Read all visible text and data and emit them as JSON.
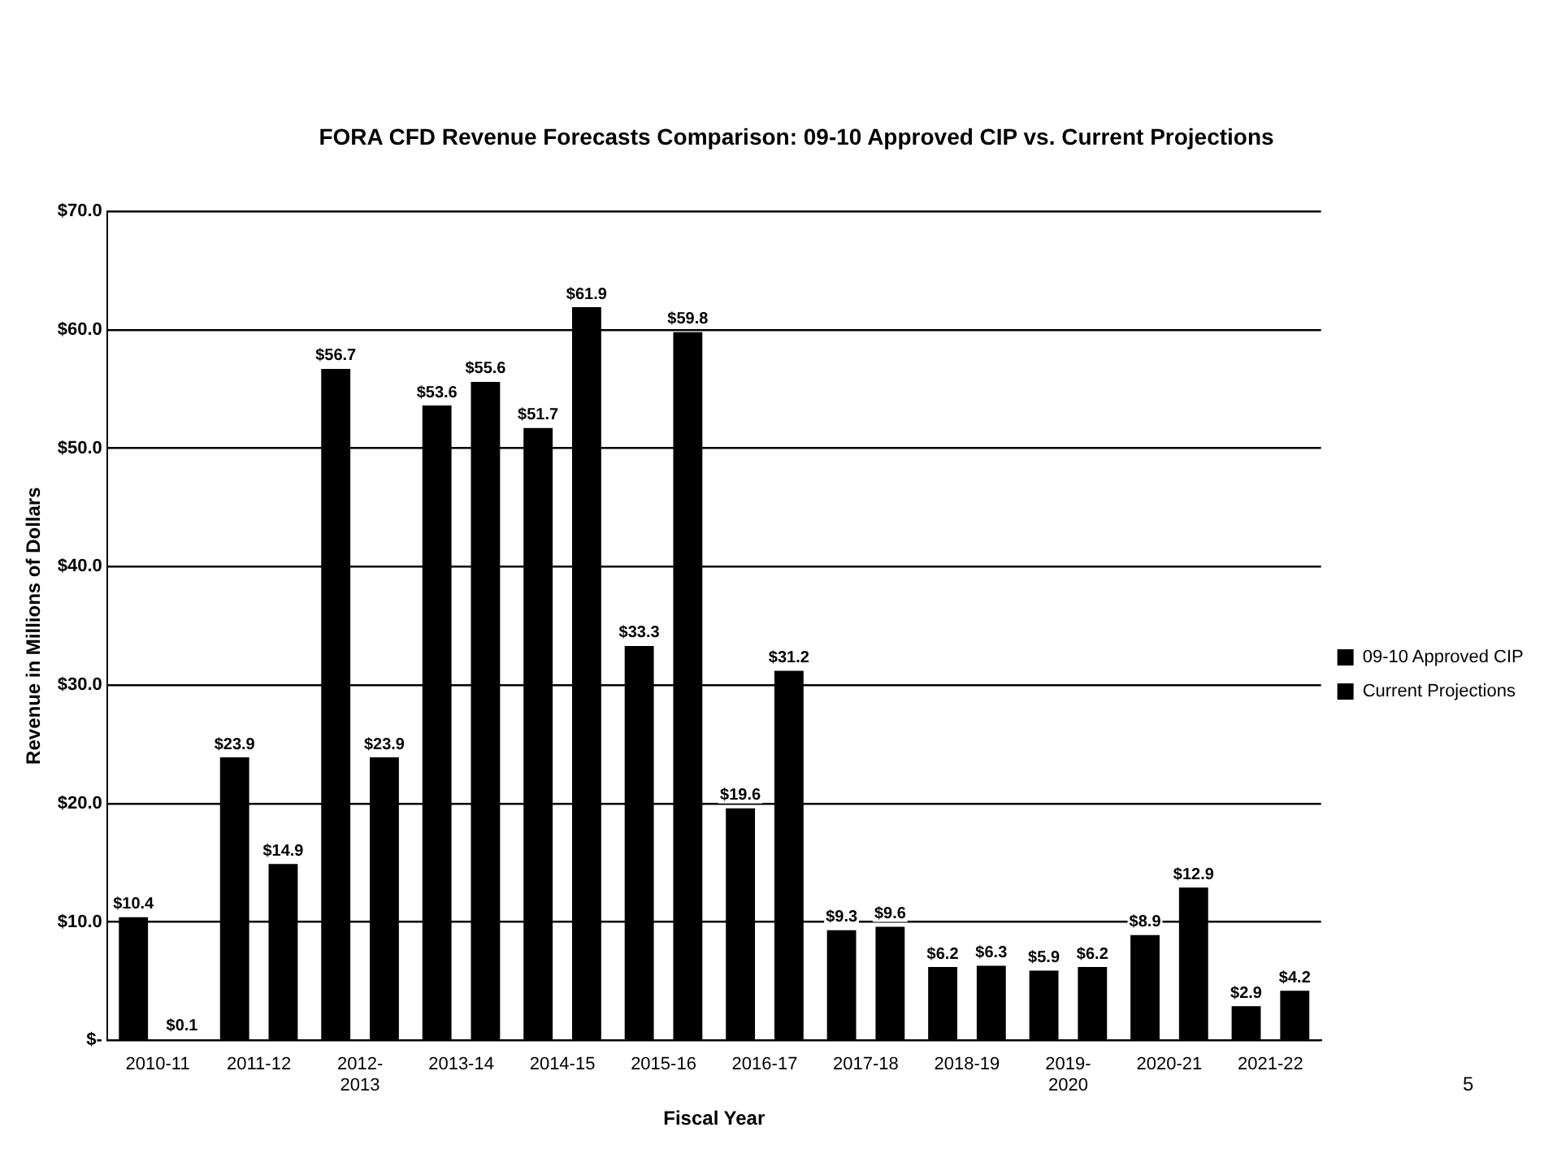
{
  "chart_data": {
    "type": "bar",
    "title": "FORA CFD Revenue Forecasts Comparison:  09-10 Approved CIP vs. Current Projections",
    "xlabel": "Fiscal Year",
    "ylabel": "Revenue in Millions of Dollars",
    "categories": [
      "2010-11",
      "2011-12",
      "2012-2013",
      "2013-14",
      "2014-15",
      "2015-16",
      "2016-17",
      "2017-18",
      "2018-19",
      "2019-2020",
      "2020-21",
      "2021-22"
    ],
    "series": [
      {
        "name": "09-10 Approved CIP",
        "color": "#000000",
        "values": [
          10.4,
          23.9,
          56.7,
          53.6,
          51.7,
          33.3,
          19.6,
          9.3,
          6.2,
          5.9,
          8.9,
          2.9
        ],
        "value_labels": [
          "$10.4",
          "$23.9",
          "$56.7",
          "$53.6",
          "$51.7",
          "$33.3",
          "$19.6",
          "$9.3",
          "$6.2",
          "$5.9",
          "$8.9",
          "$2.9"
        ]
      },
      {
        "name": "Current Projections",
        "color": "#000000",
        "values": [
          0.1,
          14.9,
          23.9,
          55.6,
          61.9,
          59.8,
          31.2,
          9.6,
          6.3,
          6.2,
          12.9,
          4.2
        ],
        "value_labels": [
          "$0.1",
          "$14.9",
          "$23.9",
          "$55.6",
          "$61.9",
          "$59.8",
          "$31.2",
          "$9.6",
          "$6.3",
          "$6.2",
          "$12.9",
          "$4.2"
        ]
      }
    ],
    "ylim": [
      0,
      70
    ],
    "yticks": [
      {
        "value": 0,
        "label": "$-"
      },
      {
        "value": 10,
        "label": "$10.0"
      },
      {
        "value": 20,
        "label": "$20.0"
      },
      {
        "value": 30,
        "label": "$30.0"
      },
      {
        "value": 40,
        "label": "$40.0"
      },
      {
        "value": 50,
        "label": "$50.0"
      },
      {
        "value": 60,
        "label": "$60.0"
      },
      {
        "value": 70,
        "label": "$70.0"
      }
    ],
    "grid": "y",
    "legend": "right",
    "annotations": [
      "5"
    ]
  }
}
